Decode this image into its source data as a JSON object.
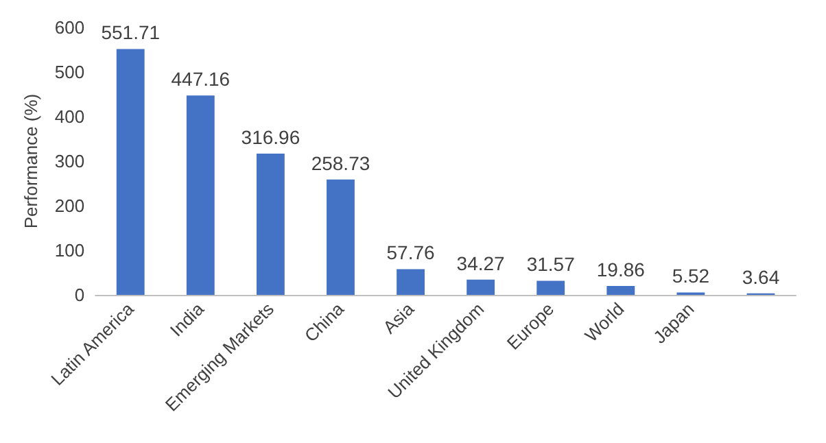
{
  "chart_data": {
    "type": "bar",
    "ylabel": "Performance (%)",
    "categories": [
      "Latin America",
      "India",
      "Emerging Markets",
      "China",
      "Asia",
      "United Kingdom",
      "Europe",
      "World",
      "Japan",
      null
    ],
    "values": [
      551.71,
      447.16,
      316.96,
      258.73,
      57.76,
      34.27,
      31.57,
      19.86,
      5.52,
      3.64
    ],
    "color": "#4472c4",
    "ylim": [
      0,
      600
    ],
    "yticks": [
      0,
      100,
      200,
      300,
      400,
      500,
      600
    ],
    "grid": false,
    "data_labels": true
  }
}
